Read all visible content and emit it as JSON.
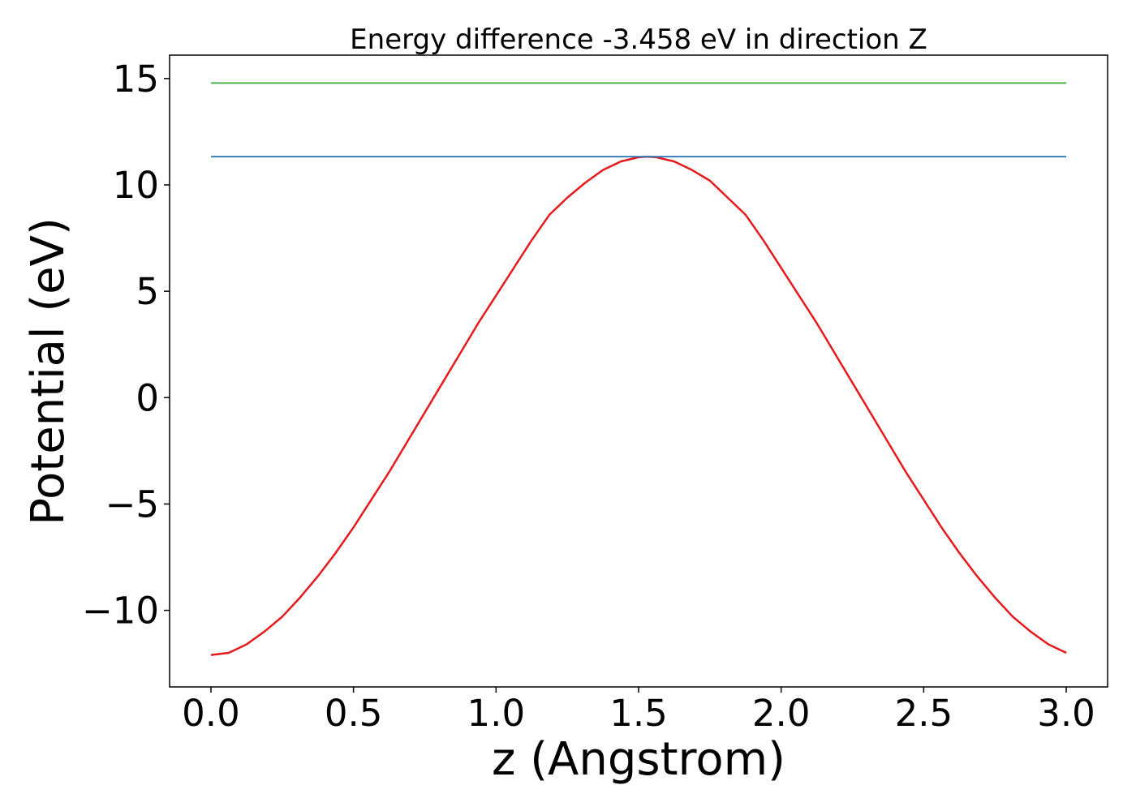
{
  "chart_data": {
    "type": "line",
    "title": "Energy difference -3.458 eV in direction Z",
    "xlabel": "z (Angstrom)",
    "ylabel": "Potential (eV)",
    "xlim": [
      -0.145,
      3.145
    ],
    "ylim": [
      -13.6,
      16.1
    ],
    "xticks": [
      0.0,
      0.5,
      1.0,
      1.5,
      2.0,
      2.5,
      3.0
    ],
    "xtick_labels": [
      "0.0",
      "0.5",
      "1.0",
      "1.5",
      "2.0",
      "2.5",
      "3.0"
    ],
    "yticks": [
      -10,
      -5,
      0,
      5,
      10,
      15
    ],
    "ytick_labels": [
      "−10",
      "−5",
      "0",
      "5",
      "10",
      "15"
    ],
    "grid": false,
    "series": [
      {
        "name": "potential",
        "color": "#e41a1c",
        "x": [
          0.0,
          0.0625,
          0.125,
          0.1875,
          0.25,
          0.3125,
          0.375,
          0.4375,
          0.5,
          0.5625,
          0.625,
          0.6875,
          0.75,
          0.8125,
          0.875,
          0.9375,
          1.0,
          1.0625,
          1.125,
          1.1875,
          1.25,
          1.3125,
          1.375,
          1.4375,
          1.5,
          1.53,
          1.5625,
          1.625,
          1.6875,
          1.75,
          1.8125,
          1.875,
          1.9375,
          2.0,
          2.0625,
          2.125,
          2.1875,
          2.25,
          2.3125,
          2.375,
          2.4375,
          2.5,
          2.5625,
          2.625,
          2.6875,
          2.75,
          2.8125,
          2.875,
          2.9375,
          3.0
        ],
        "y": [
          -12.1,
          -12.0,
          -11.6,
          -11.0,
          -10.3,
          -9.4,
          -8.4,
          -7.3,
          -6.1,
          -4.8,
          -3.5,
          -2.1,
          -0.7,
          0.7,
          2.1,
          3.5,
          4.8,
          6.1,
          7.4,
          8.6,
          9.4,
          10.1,
          10.7,
          11.1,
          11.3,
          11.33,
          11.3,
          11.1,
          10.7,
          10.2,
          9.4,
          8.6,
          7.4,
          6.1,
          4.8,
          3.5,
          2.1,
          0.7,
          -0.7,
          -2.1,
          -3.5,
          -4.8,
          -6.1,
          -7.3,
          -8.4,
          -9.4,
          -10.3,
          -11.0,
          -11.6,
          -12.0
        ]
      },
      {
        "name": "blue-level",
        "color": "#377eb8",
        "x": [
          0.0,
          3.0
        ],
        "y": [
          11.33,
          11.33
        ]
      },
      {
        "name": "green-level",
        "color": "#4daf4a",
        "x": [
          0.0,
          3.0
        ],
        "y": [
          14.79,
          14.79
        ]
      }
    ]
  }
}
